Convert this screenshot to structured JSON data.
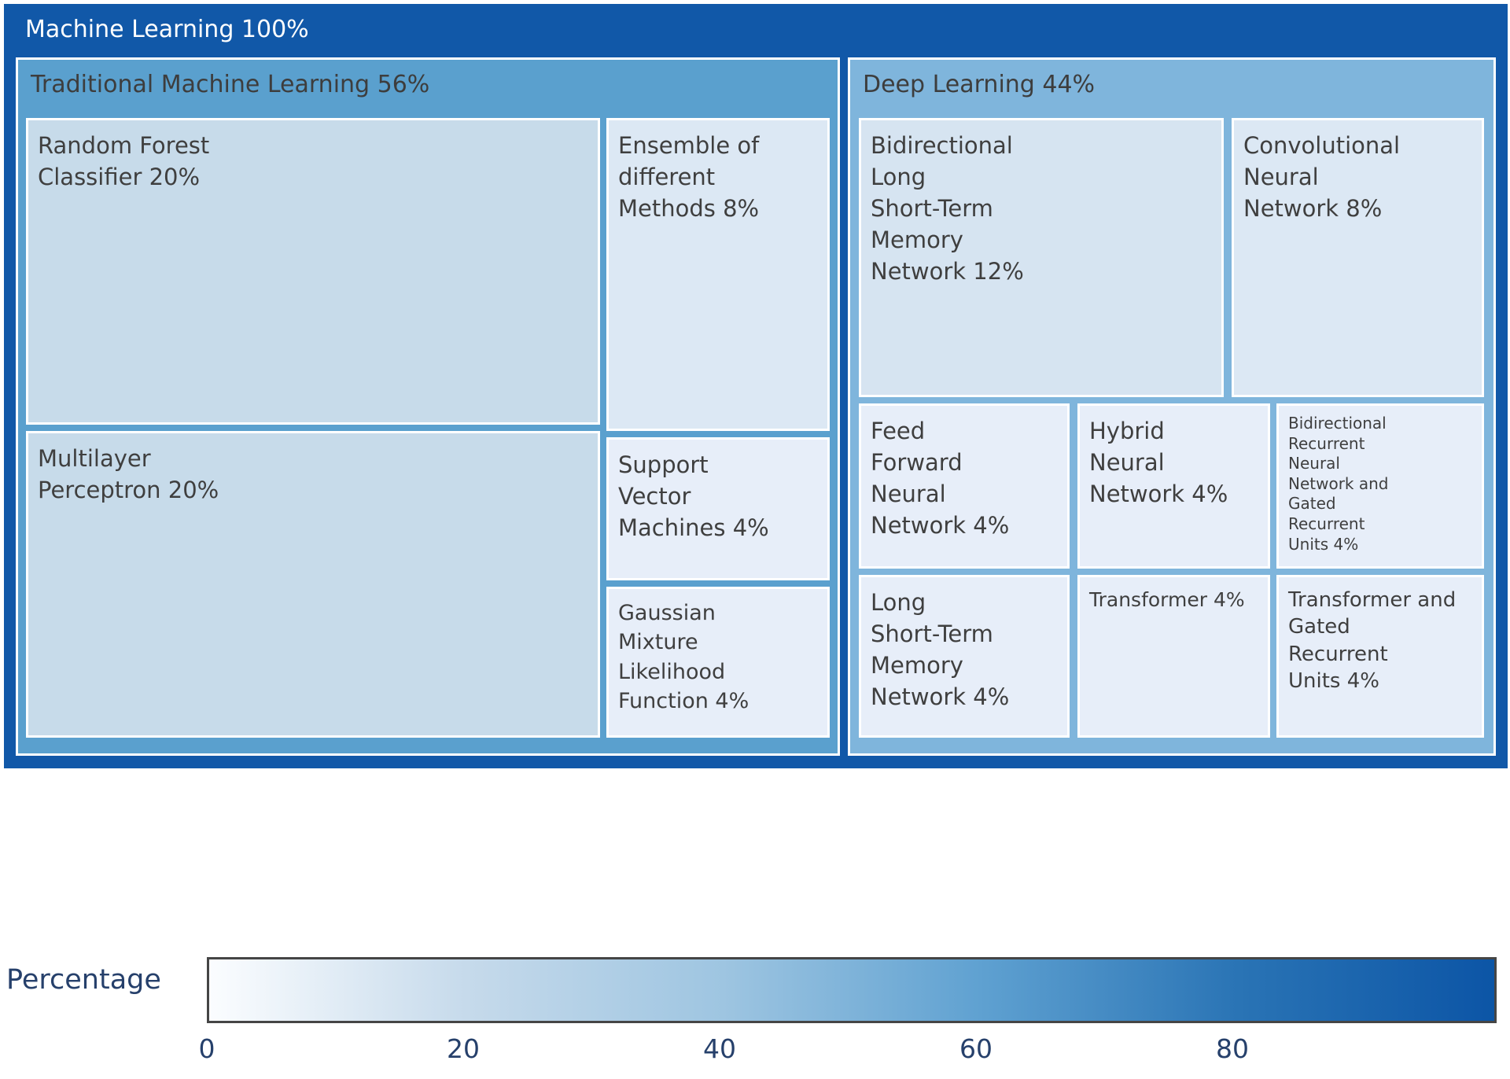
{
  "chart_data": {
    "type": "treemap",
    "title": "Machine Learning",
    "total_percent": 100,
    "groups": [
      {
        "name": "Traditional Machine Learning",
        "percent": 56,
        "children": [
          {
            "name": "Random Forest Classifier",
            "percent": 20
          },
          {
            "name": "Multilayer Perceptron",
            "percent": 20
          },
          {
            "name": "Ensemble of different Methods",
            "percent": 8
          },
          {
            "name": "Support Vector Machines",
            "percent": 4
          },
          {
            "name": "Gaussian Mixture Likelihood Function",
            "percent": 4
          }
        ]
      },
      {
        "name": "Deep Learning",
        "percent": 44,
        "children": [
          {
            "name": "Bidirectional Long Short-Term Memory Network",
            "percent": 12
          },
          {
            "name": "Convolutional Neural Network",
            "percent": 8
          },
          {
            "name": "Feed Forward Neural Network",
            "percent": 4
          },
          {
            "name": "Hybrid Neural Network",
            "percent": 4
          },
          {
            "name": "Bidirectional Recurrent Neural Network and Gated Recurrent Units",
            "percent": 4
          },
          {
            "name": "Long Short-Term Memory Network",
            "percent": 4
          },
          {
            "name": "Transformer",
            "percent": 4
          },
          {
            "name": "Transformer and Gated Recurrent Units",
            "percent": 4
          }
        ]
      }
    ],
    "colorbar": {
      "label": "Percentage",
      "ticks": [
        0,
        20,
        40,
        60,
        80
      ],
      "range": [
        0,
        100
      ],
      "colormap": "white-to-blue"
    },
    "legend_position": "bottom"
  },
  "treemap": {
    "root_label": "Machine Learning 100%",
    "traditional": {
      "label": "Traditional Machine Learning 56%",
      "cells": {
        "rfc": "Random Forest\nClassifier 20%",
        "mlp": "Multilayer\nPerceptron 20%",
        "ens": "Ensemble of\ndifferent\nMethods 8%",
        "svm": "Support\nVector\nMachines 4%",
        "gml": "Gaussian\nMixture\nLikelihood\nFunction 4%"
      }
    },
    "deep": {
      "label": "Deep Learning 44%",
      "cells": {
        "bilstm": "Bidirectional\nLong\nShort-Term\nMemory\nNetwork 12%",
        "cnn": "Convolutional\nNeural\nNetwork 8%",
        "ffnn": "Feed\nForward\nNeural\nNetwork 4%",
        "hybrid": "Hybrid\nNeural\nNetwork 4%",
        "brnn_gru": "Bidirectional\nRecurrent\nNeural\nNetwork and\nGated\nRecurrent\nUnits 4%",
        "lstm": "Long\nShort-Term\nMemory\nNetwork 4%",
        "transformer": "Transformer 4%",
        "transformer_gru": "Transformer and\nGated\nRecurrent\nUnits 4%"
      }
    }
  },
  "legend": {
    "title": "Percentage",
    "ticks": [
      "0",
      "20",
      "40",
      "60",
      "80"
    ],
    "gradient_stops": [
      "#fbfdff",
      "#c6daeb",
      "#9ec5e1",
      "#5fa1d1",
      "#2a74b5",
      "#0c55a6"
    ]
  },
  "colors": {
    "p100": "#1158a8",
    "p56": "#5aa0ce",
    "p44": "#7fb5dc",
    "p20": "#c7dbea",
    "p12": "#d6e4f1",
    "p8": "#dce8f4",
    "p4": "#e7eef9",
    "text_dark": "#3f3f3f",
    "text_light": "#ffffff",
    "legend_text": "#26406b",
    "colorbar_border": "#454545",
    "cell_border": "#ffffff"
  }
}
